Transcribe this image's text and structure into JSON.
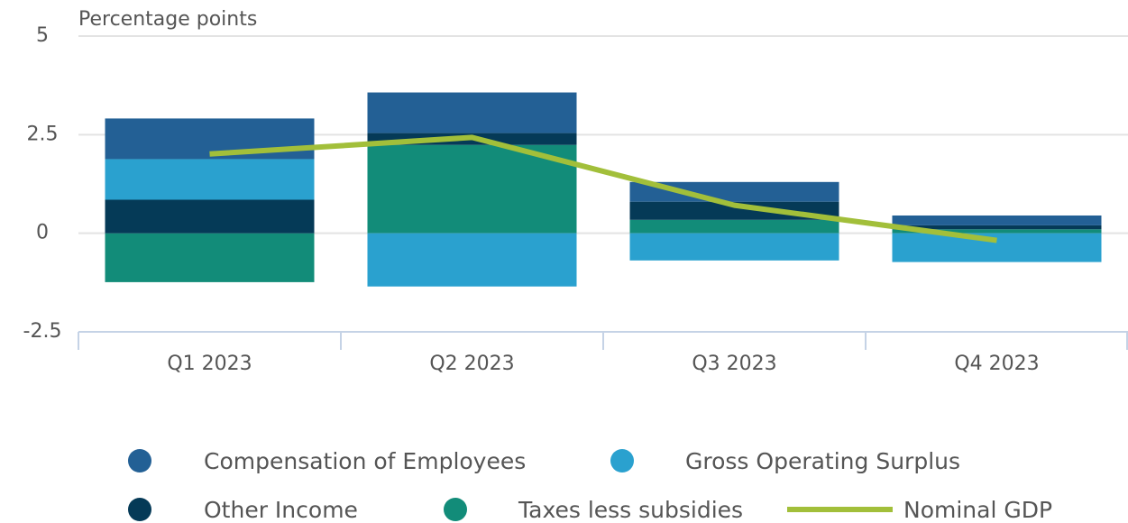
{
  "chart_data": {
    "type": "bar",
    "stacked": true,
    "y_axis_label": "Percentage points",
    "categories": [
      "Q1 2023",
      "Q2 2023",
      "Q3 2023",
      "Q4 2023"
    ],
    "series": [
      {
        "name": "Compensation of Employees",
        "color": "#236095",
        "values": [
          1.03,
          1.03,
          0.5,
          0.25
        ]
      },
      {
        "name": "Gross Operating Surplus",
        "color": "#2aa1cf",
        "values": [
          1.03,
          -1.35,
          -0.69,
          -0.73
        ]
      },
      {
        "name": "Other Income",
        "color": "#053a57",
        "values": [
          0.85,
          0.3,
          0.46,
          0.1
        ]
      },
      {
        "name": "Taxes less subsidies",
        "color": "#128c79",
        "values": [
          -1.24,
          2.24,
          0.34,
          0.1
        ]
      },
      {
        "name": "Nominal GDP",
        "type": "line",
        "color": "#a2bf3a",
        "values": [
          2.01,
          2.43,
          0.71,
          -0.18
        ]
      }
    ],
    "ylim": [
      -2.5,
      5
    ],
    "yticks": [
      5,
      2.5,
      0,
      -2.5
    ],
    "grid": true
  }
}
